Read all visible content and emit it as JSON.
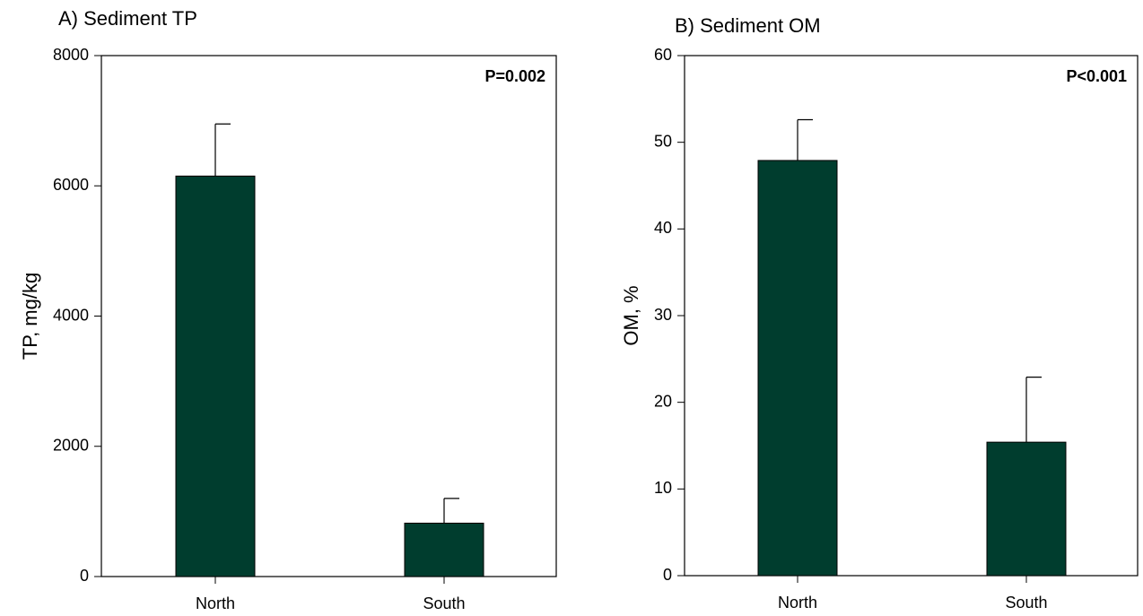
{
  "chart_data": [
    {
      "type": "bar",
      "title": "A) Sediment TP",
      "ylabel": "TP, mg/kg",
      "categories": [
        "North",
        "South"
      ],
      "values": [
        6150,
        820
      ],
      "errors": [
        800,
        380
      ],
      "color": "#003d2e",
      "ylim": [
        0,
        8000
      ],
      "yticks": [
        0,
        2000,
        4000,
        6000,
        8000
      ],
      "annotation": "P=0.002"
    },
    {
      "type": "bar",
      "title": "B) Sediment OM",
      "ylabel": "OM, %",
      "categories": [
        "North",
        "South"
      ],
      "values": [
        47.9,
        15.4
      ],
      "errors": [
        4.7,
        7.5
      ],
      "color": "#003d2e",
      "ylim": [
        0,
        60
      ],
      "yticks": [
        0,
        10,
        20,
        30,
        40,
        50,
        60
      ],
      "annotation": "P<0.001"
    }
  ]
}
